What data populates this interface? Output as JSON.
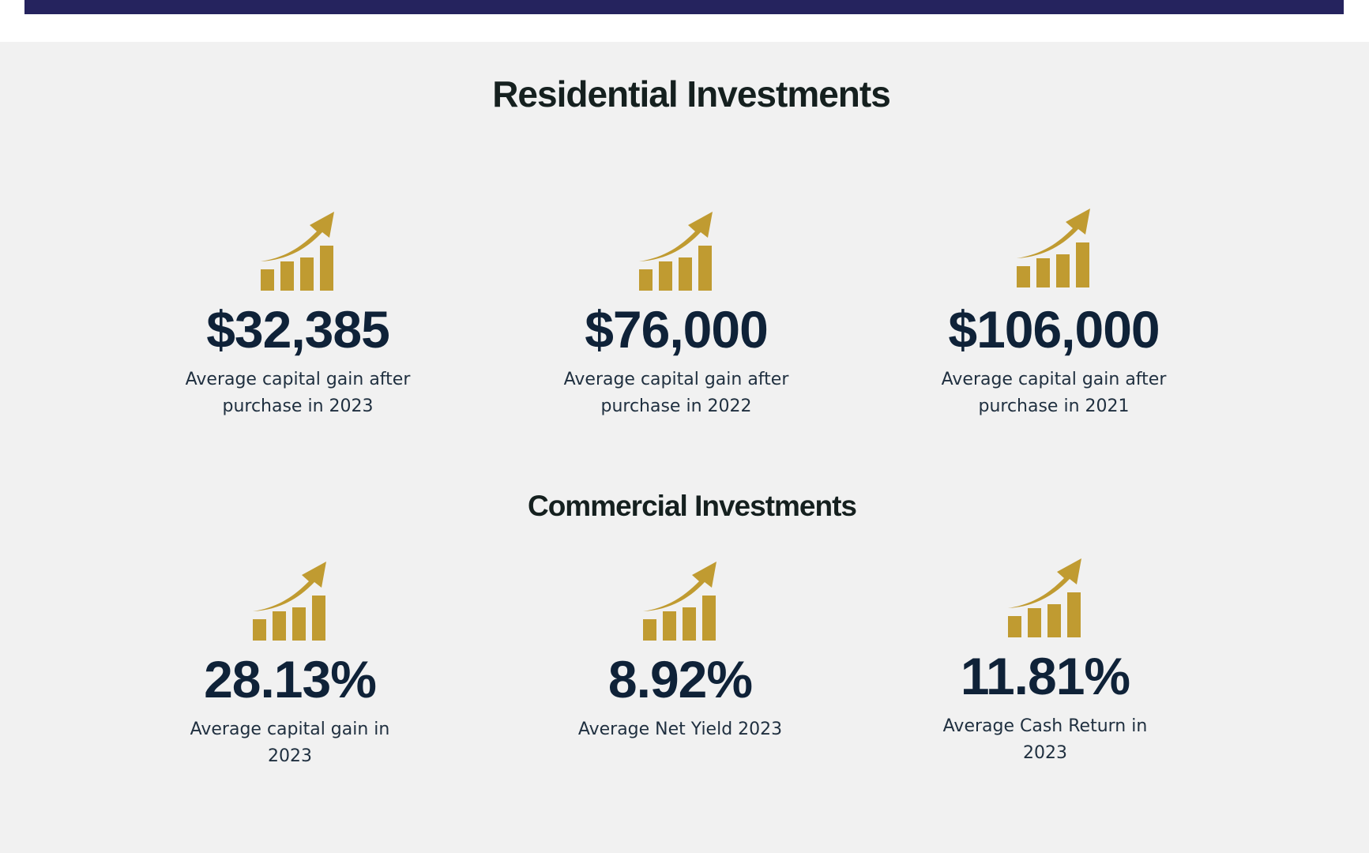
{
  "residential": {
    "title": "Residential Investments",
    "stats": [
      {
        "value": "$32,385",
        "caption": "Average capital gain after purchase in 2023",
        "icon": "growth-chart-icon"
      },
      {
        "value": "$76,000",
        "caption": "Average capital gain after purchase in 2022",
        "icon": "growth-chart-icon"
      },
      {
        "value": "$106,000",
        "caption": "Average capital gain after purchase in 2021",
        "icon": "growth-chart-icon"
      }
    ]
  },
  "commercial": {
    "title": "Commercial Investments",
    "stats": [
      {
        "value": "28.13%",
        "caption": "Average capital gain in 2023",
        "icon": "growth-chart-icon"
      },
      {
        "value": "8.92%",
        "caption": "Average Net Yield 2023",
        "icon": "growth-chart-icon"
      },
      {
        "value": "11.81%",
        "caption": "Average Cash Return in 2023",
        "icon": "growth-chart-icon"
      }
    ]
  },
  "colors": {
    "header_bar": "#25235e",
    "section_bg": "#f1f1f1",
    "icon_gold": "#c09b31",
    "value_navy": "#0f2238",
    "heading": "#15201f"
  }
}
